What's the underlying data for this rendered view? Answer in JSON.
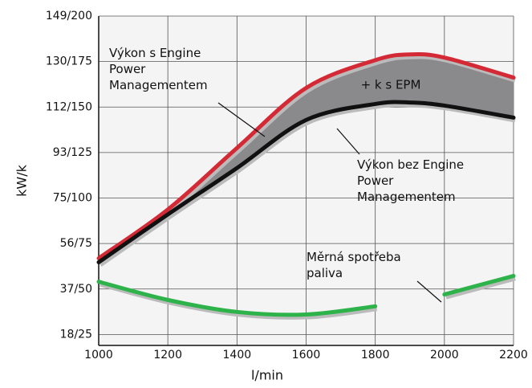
{
  "chart_data": {
    "type": "line",
    "x_label": "l/min",
    "y_label": "kW/k",
    "x": [
      1000,
      1200,
      1400,
      1600,
      1800,
      1900,
      2000,
      2200
    ],
    "series": [
      {
        "name": "Výkon s Engine Power Managementem",
        "color": "#d42a36",
        "values": [
          66.9,
          93.7,
          127.5,
          160.5,
          175.8,
          178.9,
          177.2,
          166.2
        ]
      },
      {
        "name": "Výkon bez Engine Power Managementem",
        "color": "#111111",
        "values": [
          64.7,
          91,
          116.5,
          142.9,
          151.7,
          152.5,
          150.8,
          144.2
        ]
      },
      {
        "name": "Měrná spotřeba paliva",
        "color": "#2db34a",
        "values": [
          54,
          44,
          37.4,
          36,
          40.5,
          null,
          47,
          57.2
        ]
      }
    ],
    "area_label": "+ k s EPM",
    "area_color": "#8a8a8c",
    "xlim": [
      1000,
      2200
    ],
    "xticks": [
      1000,
      1200,
      1400,
      1600,
      1800,
      2000,
      2200
    ],
    "ylim": [
      19,
      200
    ],
    "yticks": [
      {
        "value": 25,
        "label": "18/25"
      },
      {
        "value": 50,
        "label": "37/50"
      },
      {
        "value": 75,
        "label": "56/75"
      },
      {
        "value": 100,
        "label": "75/100"
      },
      {
        "value": 125,
        "label": "93/125"
      },
      {
        "value": 150,
        "label": "112/150"
      },
      {
        "value": 175,
        "label": "130/175"
      },
      {
        "value": 200,
        "label": "149/200"
      }
    ],
    "grid": true
  }
}
